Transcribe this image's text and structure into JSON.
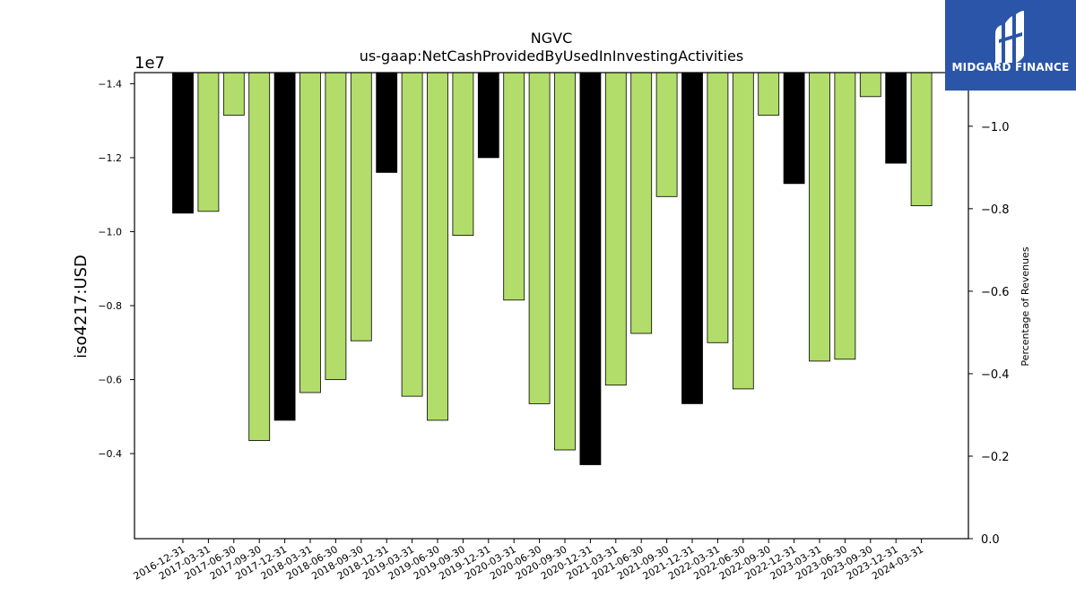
{
  "chart_data": {
    "type": "bar",
    "title": "NGVC",
    "subtitle": "us-gaap:NetCashProvidedByUsedInInvestingActivities",
    "ylabel": "iso4217:USD",
    "y_multiplier": "1e7",
    "y2label": "Percentage of Revenues",
    "ylim": [
      -14300000,
      -1700000
    ],
    "y2lim": [
      0.0,
      -1.13
    ],
    "yticks": [
      -4000000,
      -6000000,
      -8000000,
      -10000000,
      -12000000,
      -14000000
    ],
    "ytick_labels": [
      "−0.4",
      "−0.6",
      "−0.8",
      "−1.0",
      "−1.2",
      "−1.4"
    ],
    "y2ticks": [
      -1.0,
      -0.8,
      -0.6,
      -0.4,
      -0.2,
      0.0
    ],
    "y2tick_labels": [
      "−1.0",
      "−0.8",
      "−0.6",
      "−0.4",
      "−0.2",
      "0.0"
    ],
    "categories": [
      "2016-12-31",
      "2017-03-31",
      "2017-06-30",
      "2017-09-30",
      "2017-12-31",
      "2018-03-31",
      "2018-06-30",
      "2018-09-30",
      "2018-12-31",
      "2019-03-31",
      "2019-06-30",
      "2019-09-30",
      "2019-12-31",
      "2020-03-31",
      "2020-06-30",
      "2020-09-30",
      "2020-12-31",
      "2021-03-31",
      "2021-06-30",
      "2021-09-30",
      "2021-12-31",
      "2022-03-31",
      "2022-06-30",
      "2022-09-30",
      "2022-12-31",
      "2023-03-31",
      "2023-06-30",
      "2023-09-30",
      "2023-12-31",
      "2024-03-31"
    ],
    "values": [
      -10500000,
      -10550000,
      -13150000,
      -4350000,
      -4900000,
      -5650000,
      -6000000,
      -7050000,
      -11600000,
      -5550000,
      -4900000,
      -9900000,
      -12000000,
      -8150000,
      -5350000,
      -4100000,
      -3700000,
      -5850000,
      -7250000,
      -10950000,
      -5350000,
      -7000000,
      -5750000,
      -13150000,
      -11300000,
      -6500000,
      -6550000,
      -13650000,
      -11850000,
      -10700000
    ],
    "bar_colors": [
      "#000000",
      "#b2dd6a",
      "#b2dd6a",
      "#b2dd6a",
      "#000000",
      "#b2dd6a",
      "#b2dd6a",
      "#b2dd6a",
      "#000000",
      "#b2dd6a",
      "#b2dd6a",
      "#b2dd6a",
      "#000000",
      "#b2dd6a",
      "#b2dd6a",
      "#b2dd6a",
      "#000000",
      "#b2dd6a",
      "#b2dd6a",
      "#b2dd6a",
      "#000000",
      "#b2dd6a",
      "#b2dd6a",
      "#b2dd6a",
      "#000000",
      "#b2dd6a",
      "#b2dd6a",
      "#b2dd6a",
      "#000000",
      "#b2dd6a"
    ],
    "grid": false,
    "legend": "none"
  },
  "logo": {
    "text": "MIDGARD FINANCE",
    "color": "#2a55a8"
  }
}
